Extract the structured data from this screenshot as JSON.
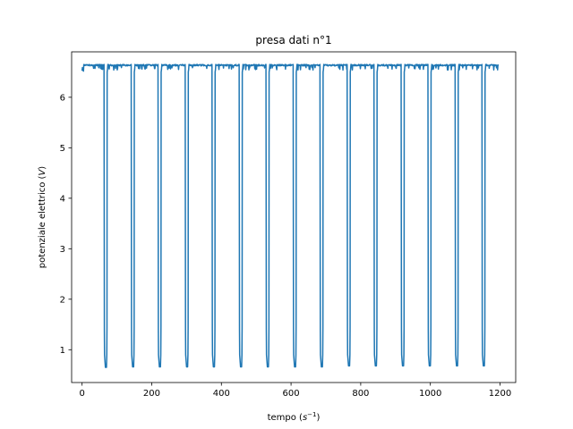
{
  "chart_data": {
    "type": "line",
    "title": "presa dati n°1",
    "xlabel": {
      "pre": "tempo (",
      "base": "s",
      "sup": "−1",
      "post": ")"
    },
    "ylabel": {
      "pre": "potenziale elettrico (",
      "var": "V",
      "post": ")"
    },
    "xlim": [
      -30,
      1245
    ],
    "ylim": [
      0.35,
      6.9
    ],
    "xticks": [
      0,
      200,
      400,
      600,
      800,
      1000,
      1200
    ],
    "yticks": [
      1,
      2,
      3,
      4,
      5,
      6
    ],
    "xtick_labels": [
      "0",
      "200",
      "400",
      "600",
      "800",
      "1000",
      "1200"
    ],
    "ytick_labels": [
      "1",
      "2",
      "3",
      "4",
      "5",
      "6"
    ],
    "grid": false,
    "color": "#1f77b4",
    "high_level": 6.65,
    "low_level": 0.65,
    "x_start": 0,
    "x_end": 1195,
    "dips": [
      {
        "start": 63,
        "end": 74,
        "min": 0.65
      },
      {
        "start": 141,
        "end": 152,
        "min": 0.66
      },
      {
        "start": 218,
        "end": 229,
        "min": 0.66
      },
      {
        "start": 296,
        "end": 307,
        "min": 0.66
      },
      {
        "start": 373,
        "end": 384,
        "min": 0.66
      },
      {
        "start": 451,
        "end": 462,
        "min": 0.66
      },
      {
        "start": 528,
        "end": 539,
        "min": 0.66
      },
      {
        "start": 606,
        "end": 617,
        "min": 0.66
      },
      {
        "start": 683,
        "end": 694,
        "min": 0.66
      },
      {
        "start": 761,
        "end": 772,
        "min": 0.68
      },
      {
        "start": 838,
        "end": 849,
        "min": 0.68
      },
      {
        "start": 916,
        "end": 927,
        "min": 0.68
      },
      {
        "start": 993,
        "end": 1004,
        "min": 0.68
      },
      {
        "start": 1071,
        "end": 1082,
        "min": 0.68
      },
      {
        "start": 1148,
        "end": 1159,
        "min": 0.68
      }
    ]
  }
}
